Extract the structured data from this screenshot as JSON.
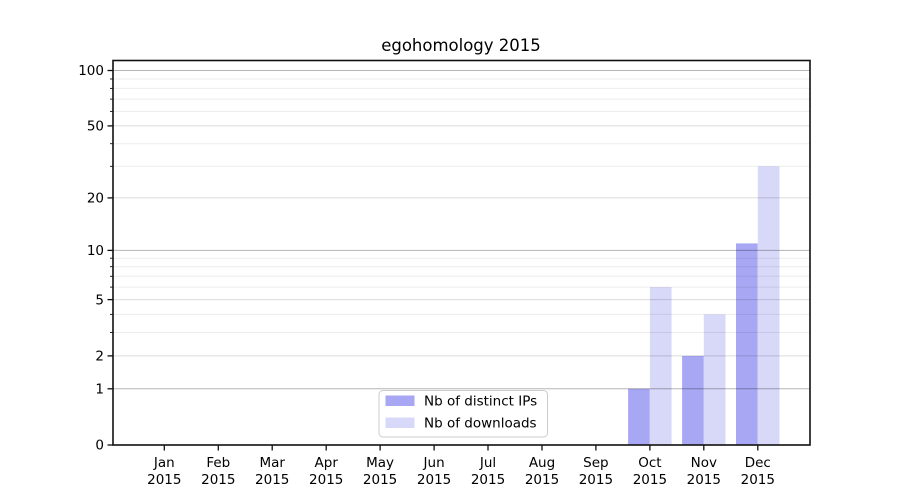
{
  "chart_data": {
    "type": "bar",
    "title": "egohomology 2015",
    "xlabel": "",
    "ylabel": "",
    "y_scale": "log1p",
    "ylim": [
      0,
      112
    ],
    "grid": true,
    "legend_position": "lower center (inside plot)",
    "months": [
      "Jan",
      "Feb",
      "Mar",
      "Apr",
      "May",
      "Jun",
      "Jul",
      "Aug",
      "Sep",
      "Oct",
      "Nov",
      "Dec"
    ],
    "year_label": "2015",
    "y_major_ticks": [
      0,
      1,
      2,
      5,
      10,
      20,
      50,
      100
    ],
    "y_decade_gridlines": [
      1,
      10,
      100
    ],
    "y_labeled_gridlines": [
      2,
      5,
      20,
      50
    ],
    "y_minor_gridlines": [
      3,
      4,
      6,
      7,
      8,
      9,
      30,
      40,
      60,
      70,
      80,
      90
    ],
    "series": [
      {
        "name": "Nb of distinct IPs",
        "color": "#a7a7f4",
        "values": [
          0,
          0,
          0,
          0,
          0,
          0,
          0,
          0,
          0,
          1,
          2,
          11
        ]
      },
      {
        "name": "Nb of downloads",
        "color": "#d8d8f8",
        "values": [
          0,
          0,
          0,
          0,
          0,
          0,
          0,
          0,
          0,
          6,
          4,
          30
        ]
      }
    ]
  },
  "colors": {
    "background": "#ffffff",
    "spine": "#111111",
    "decade_grid": "rgba(0,0,0,0.29)",
    "labeled_grid": "rgba(0,0,0,0.14)",
    "minor_grid": "rgba(0,0,0,0.075)",
    "tick_mark": "#111111",
    "text": "#000000"
  }
}
